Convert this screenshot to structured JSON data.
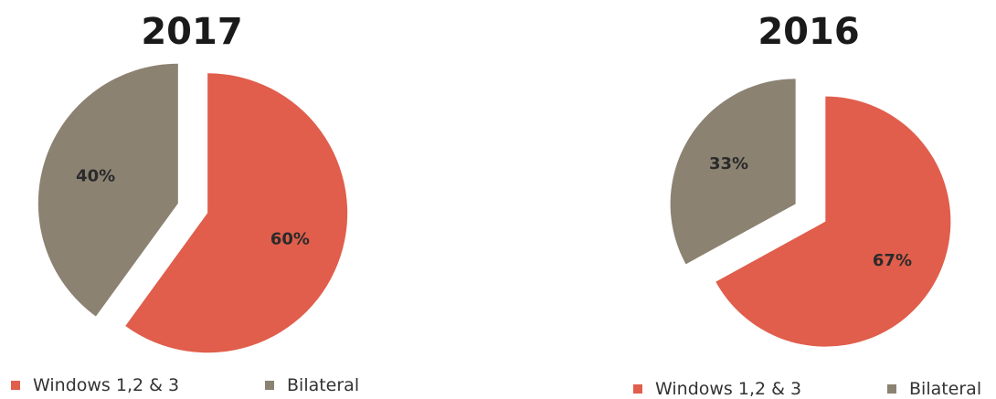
{
  "chart_data": [
    {
      "type": "pie",
      "title": "2017",
      "categories": [
        "Windows 1,2 & 3",
        "Bilateral"
      ],
      "values": [
        60,
        40
      ],
      "labels": [
        "60%",
        "40%"
      ],
      "colors": [
        "#e05e4b",
        "#8b8272"
      ],
      "legend_position": "bottom",
      "exploded": true
    },
    {
      "type": "pie",
      "title": "2016",
      "categories": [
        "Windows 1,2 & 3",
        "Bilateral"
      ],
      "values": [
        67,
        33
      ],
      "labels": [
        "67%",
        "33%"
      ],
      "colors": [
        "#e05e4b",
        "#8b8272"
      ],
      "legend_position": "bottom",
      "exploded": true
    }
  ],
  "legend": {
    "items": [
      {
        "label": "Windows 1,2 & 3",
        "color": "#e05e4b"
      },
      {
        "label": "Bilateral",
        "color": "#8b8272"
      }
    ]
  }
}
